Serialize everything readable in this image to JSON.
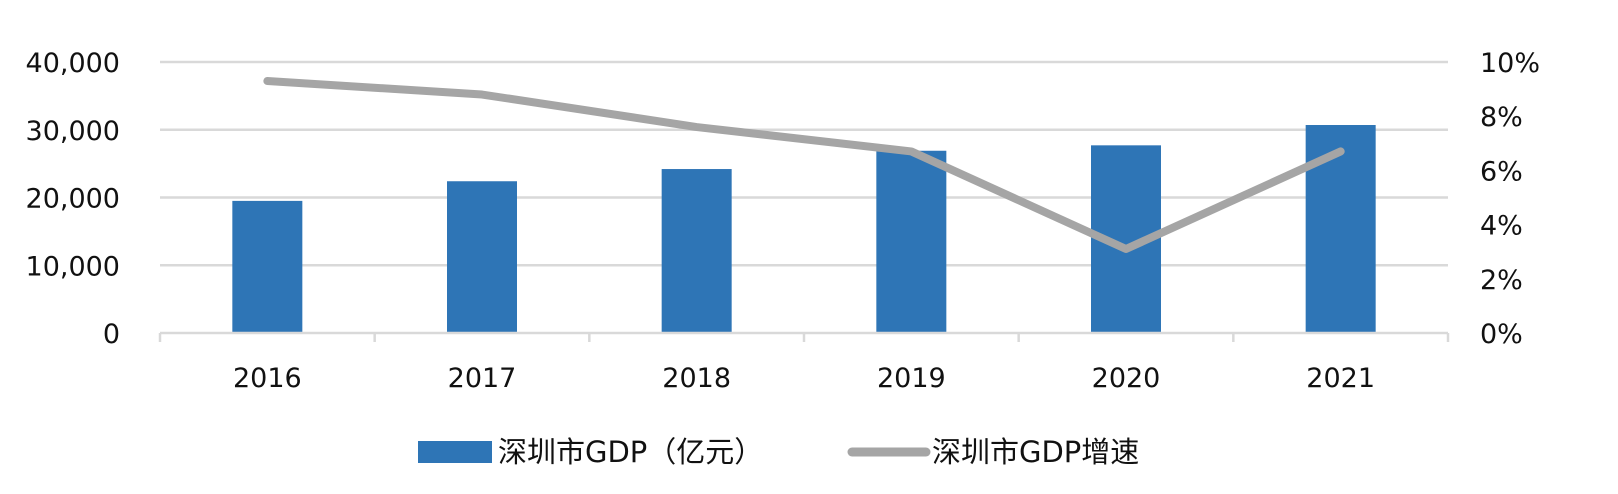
{
  "chart_data": {
    "type": "bar",
    "categories": [
      "2016",
      "2017",
      "2018",
      "2019",
      "2020",
      "2021"
    ],
    "series": [
      {
        "name": "深圳市GDP（亿元）",
        "type": "bar",
        "axis": "left",
        "color": "#2e75b6",
        "values": [
          19500,
          22400,
          24200,
          26900,
          27700,
          30700
        ]
      },
      {
        "name": "深圳市GDP增速",
        "type": "line",
        "axis": "right",
        "color": "#a5a5a5",
        "values": [
          9.3,
          8.8,
          7.6,
          6.7,
          3.1,
          6.7
        ]
      }
    ],
    "y_left": {
      "min": 0,
      "max": 40000,
      "ticks": [
        "0",
        "10,000",
        "20,000",
        "30,000",
        "40,000"
      ]
    },
    "y_right": {
      "min": 0,
      "max": 10,
      "ticks": [
        "0%",
        "2%",
        "4%",
        "6%",
        "8%",
        "10%"
      ]
    },
    "grid": true,
    "legend_position": "bottom"
  }
}
